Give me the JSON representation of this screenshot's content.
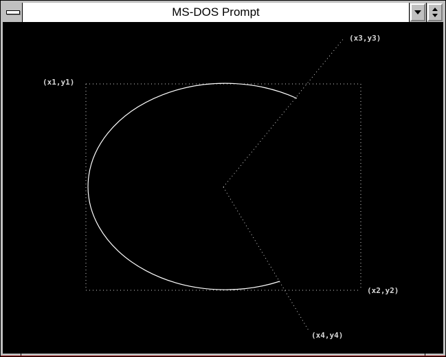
{
  "window": {
    "title": "MS-DOS Prompt"
  },
  "controls": {
    "system_menu": "system-menu-icon",
    "minimize": "chevron-down-icon",
    "restore": "restore-arrows-icon"
  },
  "canvas": {
    "background": "#000000",
    "arc_color": "#ffffff",
    "guide_color": "#d8d8d8",
    "labels": {
      "p1": "(x1,y1)",
      "p2": "(x2,y2)",
      "p3": "(x3,y3)",
      "p4": "(x4,y4)"
    }
  }
}
